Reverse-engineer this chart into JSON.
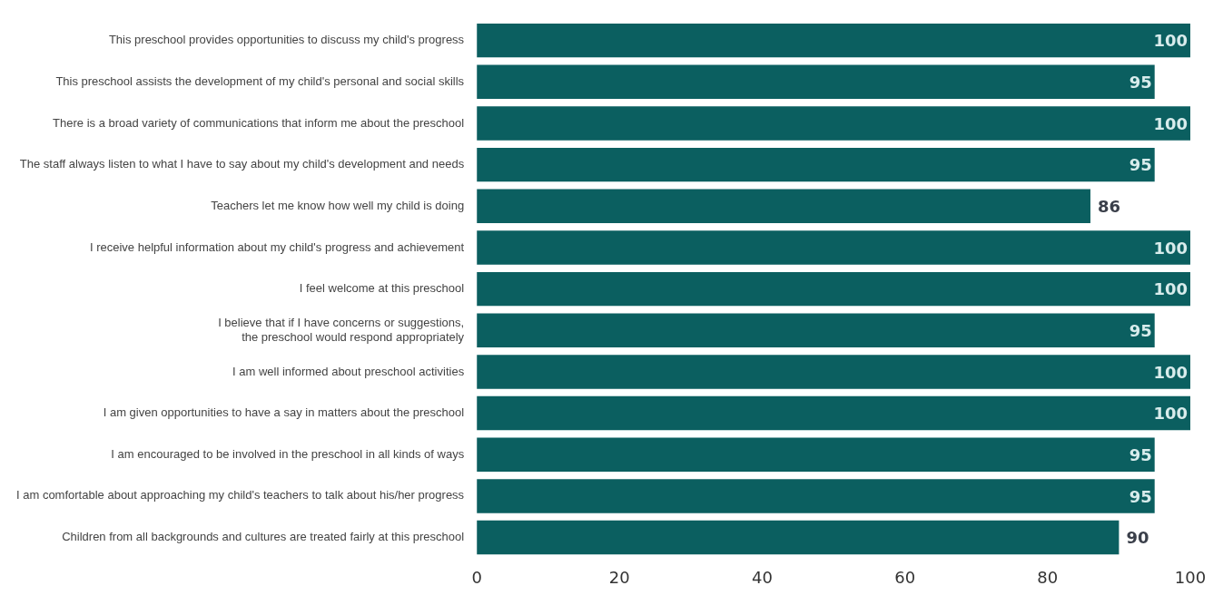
{
  "chart_data": {
    "type": "bar",
    "orientation": "horizontal",
    "categories": [
      "This preschool provides opportunities to discuss my child's progress",
      "This preschool assists the development of my child's personal and social skills",
      "There is a broad variety of communications that inform me about the preschool",
      "The staff always listen to what I have to say about my child's development and needs",
      "Teachers let me know how well my child is doing",
      "I receive helpful information about my child's progress and achievement",
      "I feel welcome at this preschool",
      "I believe that if I have concerns or suggestions,\nthe preschool would respond appropriately",
      "I am well informed about preschool activities",
      "I am given opportunities to have a say in matters about the preschool",
      "I am encouraged to be involved in the preschool in all kinds of ways",
      "I am comfortable about approaching my child's teachers to talk about his/her progress",
      "Children from all backgrounds and cultures are treated fairly at this preschool"
    ],
    "values": [
      100,
      95,
      100,
      95,
      86,
      100,
      100,
      95,
      100,
      100,
      95,
      95,
      90
    ],
    "color": "#0b5f60",
    "xlim": [
      0,
      100
    ],
    "xticks": [
      0,
      20,
      40,
      60,
      80,
      100
    ],
    "data_labels": true,
    "grid": false,
    "legend": false
  }
}
